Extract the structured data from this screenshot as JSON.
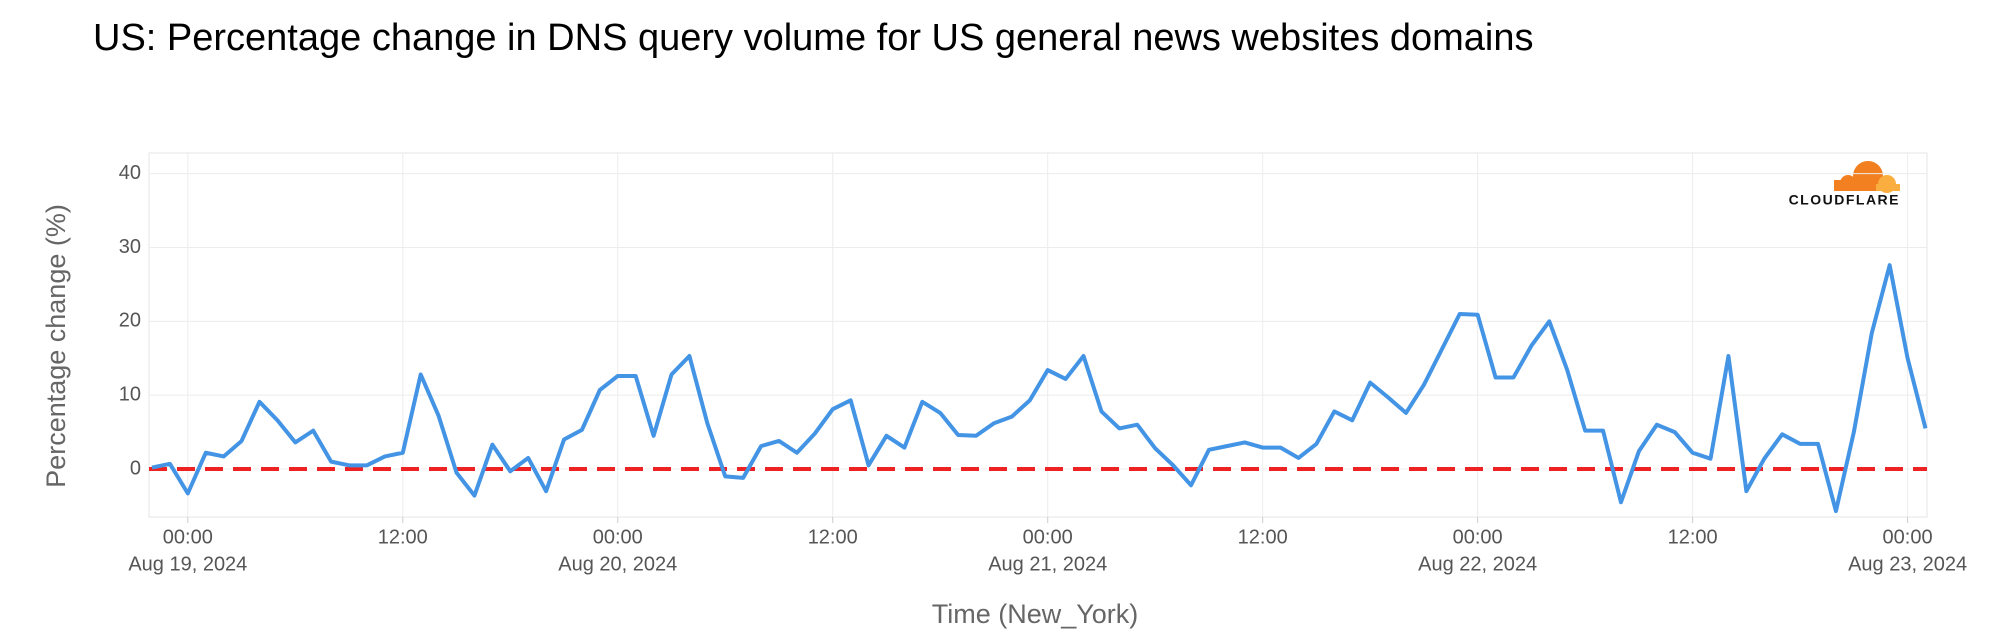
{
  "chart_data": {
    "type": "line",
    "title": "US: Percentage change in DNS query volume for US general news websites domains",
    "xlabel": "Time (New_York)",
    "ylabel": "Percentage change (%)",
    "logo": "CLOUDFLARE",
    "x": [
      "2024-08-18T22:00",
      "2024-08-18T23:00",
      "2024-08-19T00:00",
      "2024-08-19T01:00",
      "2024-08-19T02:00",
      "2024-08-19T03:00",
      "2024-08-19T04:00",
      "2024-08-19T05:00",
      "2024-08-19T06:00",
      "2024-08-19T07:00",
      "2024-08-19T08:00",
      "2024-08-19T09:00",
      "2024-08-19T10:00",
      "2024-08-19T11:00",
      "2024-08-19T12:00",
      "2024-08-19T13:00",
      "2024-08-19T14:00",
      "2024-08-19T15:00",
      "2024-08-19T16:00",
      "2024-08-19T17:00",
      "2024-08-19T18:00",
      "2024-08-19T19:00",
      "2024-08-19T20:00",
      "2024-08-19T21:00",
      "2024-08-19T22:00",
      "2024-08-19T23:00",
      "2024-08-20T00:00",
      "2024-08-20T01:00",
      "2024-08-20T02:00",
      "2024-08-20T03:00",
      "2024-08-20T04:00",
      "2024-08-20T05:00",
      "2024-08-20T06:00",
      "2024-08-20T07:00",
      "2024-08-20T08:00",
      "2024-08-20T09:00",
      "2024-08-20T10:00",
      "2024-08-20T11:00",
      "2024-08-20T12:00",
      "2024-08-20T13:00",
      "2024-08-20T14:00",
      "2024-08-20T15:00",
      "2024-08-20T16:00",
      "2024-08-20T17:00",
      "2024-08-20T18:00",
      "2024-08-20T19:00",
      "2024-08-20T20:00",
      "2024-08-20T21:00",
      "2024-08-20T22:00",
      "2024-08-20T23:00",
      "2024-08-21T00:00",
      "2024-08-21T01:00",
      "2024-08-21T02:00",
      "2024-08-21T03:00",
      "2024-08-21T04:00",
      "2024-08-21T05:00",
      "2024-08-21T06:00",
      "2024-08-21T07:00",
      "2024-08-21T08:00",
      "2024-08-21T09:00",
      "2024-08-21T10:00",
      "2024-08-21T11:00",
      "2024-08-21T12:00",
      "2024-08-21T13:00",
      "2024-08-21T14:00",
      "2024-08-21T15:00",
      "2024-08-21T16:00",
      "2024-08-21T17:00",
      "2024-08-21T18:00",
      "2024-08-21T19:00",
      "2024-08-21T20:00",
      "2024-08-21T21:00",
      "2024-08-21T22:00",
      "2024-08-21T23:00",
      "2024-08-22T00:00",
      "2024-08-22T01:00",
      "2024-08-22T02:00",
      "2024-08-22T03:00",
      "2024-08-22T04:00",
      "2024-08-22T05:00",
      "2024-08-22T06:00",
      "2024-08-22T07:00",
      "2024-08-22T08:00",
      "2024-08-22T09:00",
      "2024-08-22T10:00",
      "2024-08-22T11:00",
      "2024-08-22T12:00",
      "2024-08-22T13:00",
      "2024-08-22T14:00",
      "2024-08-22T15:00",
      "2024-08-22T16:00",
      "2024-08-22T17:00",
      "2024-08-22T18:00",
      "2024-08-22T19:00",
      "2024-08-22T20:00",
      "2024-08-22T21:00",
      "2024-08-22T22:00",
      "2024-08-22T23:00",
      "2024-08-23T00:00",
      "2024-08-23T01:00"
    ],
    "series": [
      {
        "color": "#4394e5",
        "values": [
          0.2,
          0.7,
          -3.3,
          2.2,
          1.7,
          3.8,
          9.1,
          6.6,
          3.6,
          5.2,
          1.0,
          0.5,
          0.5,
          1.7,
          2.2,
          12.8,
          7.2,
          -0.5,
          -3.6,
          3.3,
          -0.3,
          1.5,
          -3.0,
          4.0,
          5.3,
          10.7,
          12.6,
          12.6,
          4.5,
          12.8,
          15.3,
          6.2,
          -1.0,
          -1.2,
          3.1,
          3.8,
          2.2,
          4.8,
          8.1,
          9.3,
          0.5,
          4.5,
          2.9,
          9.1,
          7.6,
          4.6,
          4.5,
          6.2,
          7.1,
          9.3,
          13.4,
          12.2,
          15.3,
          7.8,
          5.5,
          6.0,
          2.8,
          0.5,
          -2.2,
          2.6,
          3.1,
          3.6,
          2.9,
          2.9,
          1.5,
          3.4,
          7.8,
          6.6,
          11.7,
          9.7,
          7.6,
          11.4,
          16.2,
          21.0,
          20.9,
          12.4,
          12.4,
          16.7,
          20.0,
          13.4,
          5.2,
          5.2,
          -4.5,
          2.4,
          6.0,
          5.0,
          2.2,
          1.4,
          15.3,
          -3.0,
          1.4,
          4.7,
          3.4,
          3.4,
          -5.7,
          5.0,
          18.4,
          27.6,
          15.0,
          5.5
        ]
      }
    ],
    "reference_line": {
      "value": 0,
      "color": "#ee2222"
    },
    "xlim": [
      "2024-08-18T21:50",
      "2024-08-23T01:05"
    ],
    "xticks": [
      {
        "value": "2024-08-19T00:00",
        "label": "00:00",
        "date": "Aug 19, 2024"
      },
      {
        "value": "2024-08-19T12:00",
        "label": "12:00"
      },
      {
        "value": "2024-08-20T00:00",
        "label": "00:00",
        "date": "Aug 20, 2024"
      },
      {
        "value": "2024-08-20T12:00",
        "label": "12:00"
      },
      {
        "value": "2024-08-21T00:00",
        "label": "00:00",
        "date": "Aug 21, 2024"
      },
      {
        "value": "2024-08-21T12:00",
        "label": "12:00"
      },
      {
        "value": "2024-08-22T00:00",
        "label": "00:00",
        "date": "Aug 22, 2024"
      },
      {
        "value": "2024-08-22T12:00",
        "label": "12:00"
      },
      {
        "value": "2024-08-23T00:00",
        "label": "00:00",
        "date": "Aug 23, 2024"
      }
    ],
    "ylim": [
      -6.5,
      42.8
    ],
    "yticks": [
      0,
      10,
      20,
      30,
      40
    ],
    "grid": true
  }
}
